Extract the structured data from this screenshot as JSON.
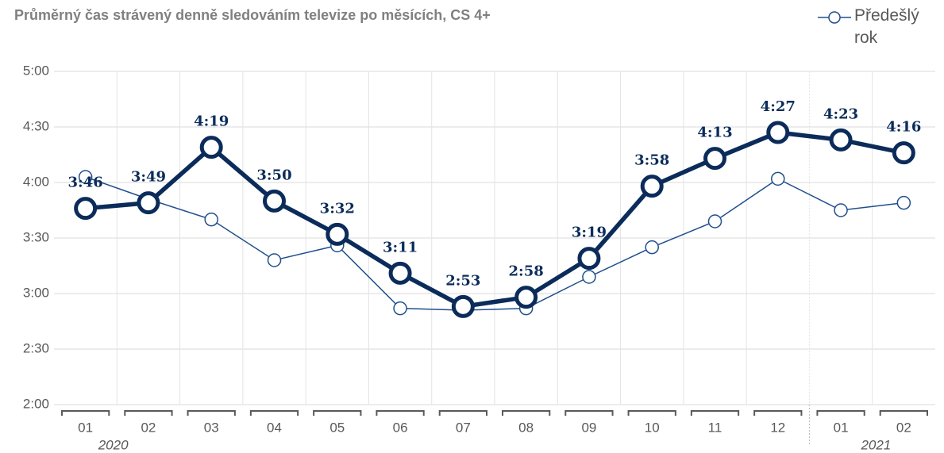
{
  "chart_data": {
    "type": "line",
    "title": "Průměrný čas strávený denně sledováním televize po měsících, CS 4+",
    "categories": [
      "01",
      "02",
      "03",
      "04",
      "05",
      "06",
      "07",
      "08",
      "09",
      "10",
      "11",
      "12",
      "01",
      "02"
    ],
    "x_groups": [
      "2020",
      "2021"
    ],
    "series": [
      {
        "color": "#0b2c5a",
        "values": [
          226,
          229,
          259,
          230,
          212,
          191,
          173,
          178,
          199,
          238,
          253,
          267,
          263,
          256
        ],
        "value_labels": [
          "3:46",
          "3:49",
          "4:19",
          "3:50",
          "3:32",
          "3:11",
          "2:53",
          "2:58",
          "3:19",
          "3:58",
          "4:13",
          "4:27",
          "4:23",
          "4:16"
        ]
      },
      {
        "name": "Předešlý rok",
        "color": "#1f4e8c",
        "values": [
          243,
          231,
          220,
          198,
          206,
          172,
          171,
          172,
          189,
          205,
          219,
          242,
          225,
          229
        ]
      }
    ],
    "ylim": [
      120,
      300
    ],
    "yticks": [
      {
        "value": 120,
        "label": "2:00"
      },
      {
        "value": 150,
        "label": "2:30"
      },
      {
        "value": 180,
        "label": "3:00"
      },
      {
        "value": 210,
        "label": "3:30"
      },
      {
        "value": 240,
        "label": "4:00"
      },
      {
        "value": 270,
        "label": "4:30"
      },
      {
        "value": 300,
        "label": "5:00"
      }
    ],
    "grid": true,
    "legend": "top-right"
  }
}
